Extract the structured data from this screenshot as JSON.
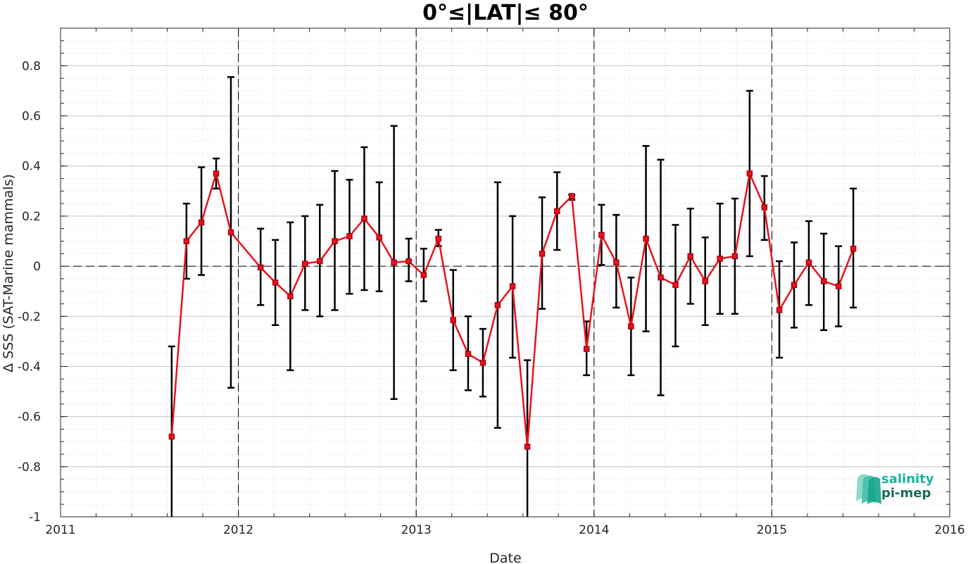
{
  "chart_data": {
    "type": "line",
    "title": "0°≤|LAT|≤ 80°",
    "xlabel": "Date",
    "ylabel": "Δ SSS (SAT-Marine mammals)",
    "xlim": [
      2011,
      2016
    ],
    "ylim": [
      -1,
      0.95
    ],
    "x_ticks": [
      "2011",
      "2012",
      "2013",
      "2014",
      "2015",
      "2016"
    ],
    "y_ticks": [
      "-1",
      "-0.8",
      "-0.6",
      "-0.4",
      "-0.2",
      "0",
      "0.2",
      "0.4",
      "0.6",
      "0.8"
    ],
    "grid": "on (major and minor, dotted)",
    "vertical_reference_years": [
      2012,
      2013,
      2014,
      2015
    ],
    "zero_line": true,
    "line_color": "#e8141c",
    "errorbar_color": "#000000",
    "series": [
      {
        "x": [
          "2011-08",
          "2011-09",
          "2011-10",
          "2011-11",
          "2011-12",
          "2012-02",
          "2012-03",
          "2012-04",
          "2012-05",
          "2012-06",
          "2012-07",
          "2012-08",
          "2012-09",
          "2012-10",
          "2012-11",
          "2012-12",
          "2013-01",
          "2013-02",
          "2013-03",
          "2013-04",
          "2013-05",
          "2013-06",
          "2013-07",
          "2013-08",
          "2013-09",
          "2013-10",
          "2013-11",
          "2013-12",
          "2014-01",
          "2014-02",
          "2014-03",
          "2014-04",
          "2014-05",
          "2014-06",
          "2014-07",
          "2014-08",
          "2014-09",
          "2014-10",
          "2014-11",
          "2014-12",
          "2015-01",
          "2015-02",
          "2015-03",
          "2015-04",
          "2015-05",
          "2015-06"
        ],
        "x_decimal": [
          2011.625,
          2011.708,
          2011.792,
          2011.875,
          2011.958,
          2012.125,
          2012.208,
          2012.292,
          2012.375,
          2012.458,
          2012.542,
          2012.625,
          2012.708,
          2012.792,
          2012.875,
          2012.958,
          2013.042,
          2013.125,
          2013.208,
          2013.292,
          2013.375,
          2013.458,
          2013.542,
          2013.625,
          2013.708,
          2013.792,
          2013.875,
          2013.958,
          2014.042,
          2014.125,
          2014.208,
          2014.292,
          2014.375,
          2014.458,
          2014.542,
          2014.625,
          2014.708,
          2014.792,
          2014.875,
          2014.958,
          2015.042,
          2015.125,
          2015.208,
          2015.292,
          2015.375,
          2015.458
        ],
        "values": [
          -0.68,
          0.1,
          0.175,
          0.37,
          0.135,
          -0.005,
          -0.065,
          -0.12,
          0.01,
          0.02,
          0.1,
          0.12,
          0.19,
          0.115,
          0.015,
          0.02,
          -0.035,
          0.11,
          -0.215,
          -0.35,
          -0.385,
          -0.155,
          -0.08,
          -0.72,
          0.05,
          0.22,
          0.28,
          -0.33,
          0.125,
          0.015,
          -0.24,
          0.11,
          -0.045,
          -0.075,
          0.04,
          -0.06,
          0.03,
          0.04,
          0.37,
          0.235,
          -0.175,
          -0.075,
          0.015,
          -0.06,
          -0.08,
          0.07
        ],
        "err_low": [
          -1.05,
          -0.05,
          -0.035,
          0.31,
          -0.485,
          -0.155,
          -0.235,
          -0.415,
          -0.175,
          -0.2,
          -0.175,
          -0.11,
          -0.095,
          -0.1,
          -0.53,
          -0.06,
          -0.14,
          0.08,
          -0.415,
          -0.495,
          -0.52,
          -0.645,
          -0.365,
          -1.05,
          -0.17,
          0.065,
          0.265,
          -0.435,
          0.005,
          -0.165,
          -0.435,
          -0.26,
          -0.515,
          -0.32,
          -0.15,
          -0.235,
          -0.19,
          -0.19,
          0.04,
          0.105,
          -0.365,
          -0.245,
          -0.155,
          -0.255,
          -0.24,
          -0.165
        ],
        "err_high": [
          -0.32,
          0.25,
          0.395,
          0.43,
          0.755,
          0.15,
          0.105,
          0.175,
          0.2,
          0.245,
          0.38,
          0.345,
          0.475,
          0.335,
          0.56,
          0.11,
          0.07,
          0.145,
          -0.015,
          -0.2,
          -0.25,
          0.335,
          0.2,
          -0.375,
          0.275,
          0.375,
          0.285,
          -0.22,
          0.245,
          0.205,
          -0.045,
          0.48,
          0.425,
          0.165,
          0.23,
          0.115,
          0.25,
          0.27,
          0.7,
          0.36,
          0.02,
          0.095,
          0.18,
          0.13,
          0.08,
          0.31
        ]
      }
    ],
    "logo": {
      "line1": "salinity",
      "line2": "pi-mep",
      "color1": "#1ab5a0",
      "color2": "#1a6b5a"
    }
  }
}
